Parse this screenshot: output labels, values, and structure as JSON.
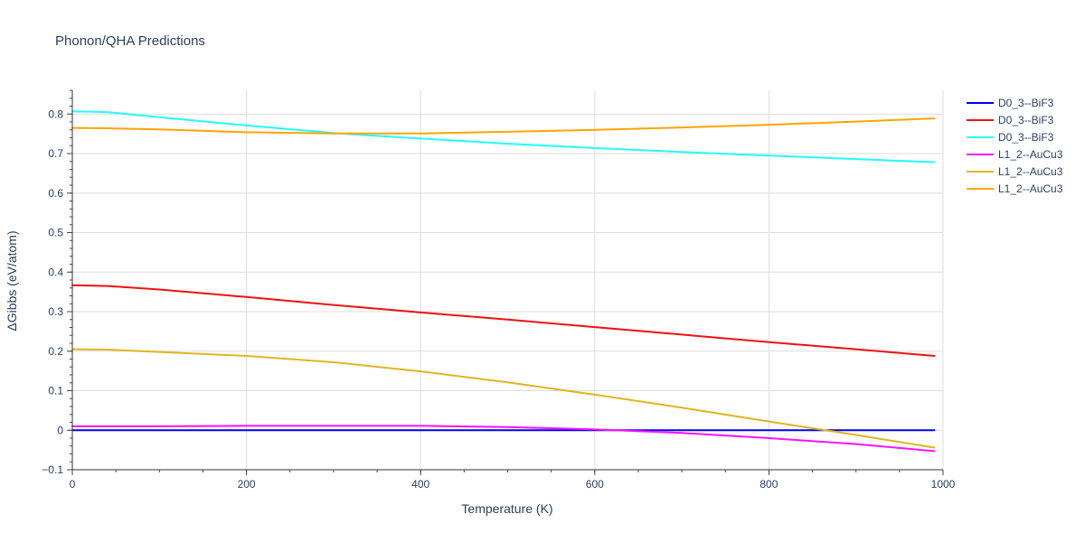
{
  "chart_data": {
    "type": "line",
    "title": "Phonon/QHA Predictions",
    "xlabel": "Temperature (K)",
    "ylabel": "ΔGibbs (eV/atom)",
    "xlim": [
      0,
      1000
    ],
    "ylim": [
      -0.1,
      0.86
    ],
    "x_ticks": [
      0,
      200,
      400,
      600,
      800,
      1000
    ],
    "x_tick_labels": [
      "0",
      "200",
      "400",
      "600",
      "800",
      "1000"
    ],
    "y_ticks": [
      -0.1,
      0,
      0.1,
      0.2,
      0.3,
      0.4,
      0.5,
      0.6,
      0.7,
      0.8
    ],
    "y_tick_labels": [
      "−0.1",
      "0",
      "0.1",
      "0.2",
      "0.3",
      "0.4",
      "0.5",
      "0.6",
      "0.7",
      "0.8"
    ],
    "grid": true,
    "legend_position": "top-right",
    "x": [
      0,
      40,
      100,
      200,
      300,
      400,
      500,
      600,
      700,
      800,
      900,
      990
    ],
    "series": [
      {
        "name": "D0_3--BiF3",
        "color": "#0000ee",
        "values": [
          0,
          0,
          0,
          0,
          0,
          0,
          0,
          0,
          0,
          0,
          0,
          0
        ]
      },
      {
        "name": "D0_3--BiF3",
        "color": "#ee1111",
        "values": [
          0.367,
          0.365,
          0.356,
          0.337,
          0.317,
          0.298,
          0.28,
          0.261,
          0.242,
          0.223,
          0.205,
          0.188
        ]
      },
      {
        "name": "D0_3--BiF3",
        "color": "#22ffff",
        "values": [
          0.807,
          0.805,
          0.792,
          0.771,
          0.752,
          0.738,
          0.725,
          0.714,
          0.704,
          0.695,
          0.686,
          0.678
        ]
      },
      {
        "name": "L1_2--AuCu3",
        "color": "#ff11ff",
        "values": [
          0.01,
          0.01,
          0.01,
          0.011,
          0.011,
          0.011,
          0.008,
          0.002,
          -0.007,
          -0.02,
          -0.035,
          -0.053
        ]
      },
      {
        "name": "L1_2--AuCu3",
        "color": "#e0b521",
        "values": [
          0.205,
          0.204,
          0.198,
          0.188,
          0.172,
          0.149,
          0.121,
          0.09,
          0.057,
          0.022,
          -0.012,
          -0.044
        ]
      },
      {
        "name": "L1_2--AuCu3",
        "color": "#ffa500",
        "values": [
          0.765,
          0.764,
          0.761,
          0.754,
          0.751,
          0.751,
          0.755,
          0.76,
          0.766,
          0.773,
          0.781,
          0.789
        ]
      }
    ]
  }
}
